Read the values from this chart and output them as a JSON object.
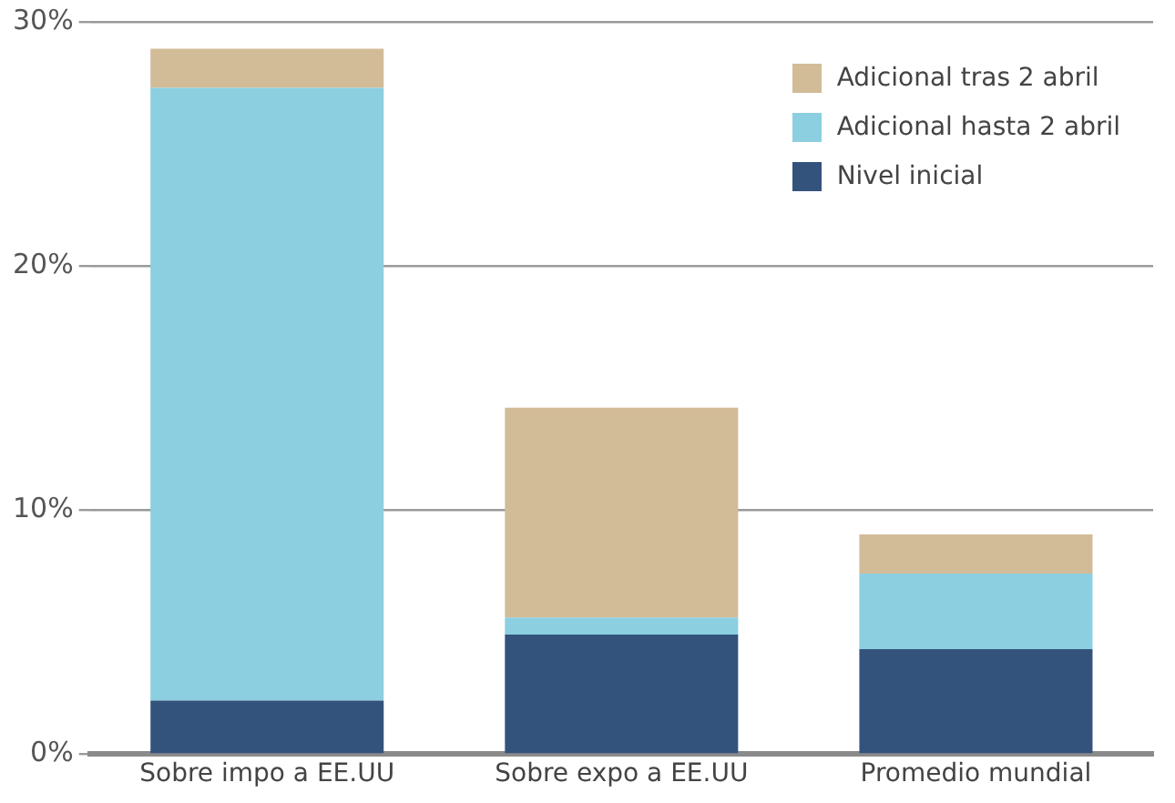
{
  "chart_data": {
    "type": "bar",
    "stacked": true,
    "categories": [
      "Sobre impo a EE.UU",
      "Sobre expo a EE.UU",
      "Promedio mundial"
    ],
    "series": [
      {
        "name": "Nivel inicial",
        "color": "#33537c",
        "values": [
          2.2,
          4.9,
          4.3
        ]
      },
      {
        "name": "Adicional hasta 2 abril",
        "color": "#8bcfe0",
        "values": [
          25.1,
          0.7,
          3.1
        ]
      },
      {
        "name": "Adicional tras 2 abril",
        "color": "#d2bc97",
        "values": [
          1.6,
          8.6,
          1.6
        ]
      }
    ],
    "ylim": [
      0,
      30
    ],
    "yticks": [
      {
        "value": 0,
        "label": "0%"
      },
      {
        "value": 10,
        "label": "10%"
      },
      {
        "value": 20,
        "label": "20%"
      },
      {
        "value": 30,
        "label": "30%"
      }
    ],
    "grid": "y",
    "legend": "top right"
  }
}
